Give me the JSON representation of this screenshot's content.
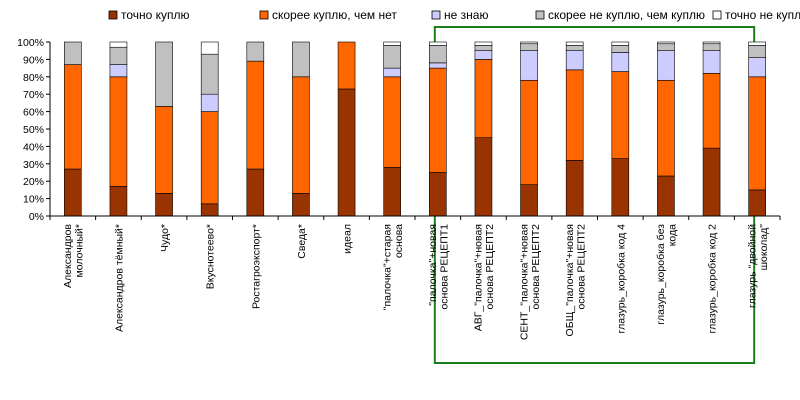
{
  "chart_data": {
    "type": "bar",
    "stacked": "percent",
    "ylim": [
      0,
      100
    ],
    "y_ticks": [
      "0%",
      "10%",
      "20%",
      "30%",
      "40%",
      "50%",
      "60%",
      "70%",
      "80%",
      "90%",
      "100%"
    ],
    "grid": false,
    "legend_position": "top",
    "highlight_box_color": "#1a7f1a",
    "highlight_box_categories": [
      8,
      14
    ],
    "categories": [
      [
        "Александров",
        "молочный*"
      ],
      [
        "Александров тёмный*"
      ],
      [
        "Чудо*"
      ],
      [
        "Вкуснотеево*"
      ],
      [
        "Ростагроэкспорт*"
      ],
      [
        "Сведа*"
      ],
      [
        "идеал"
      ],
      [
        "\"палочка\"+старая",
        "основа"
      ],
      [
        "\"палочка\"+новая",
        "основа РЕЦЕПТ1"
      ],
      [
        "АВГ_\"палочка\"+новая",
        "основа РЕЦЕПТ2"
      ],
      [
        "СЕНТ_\"палочка\"+новая",
        "основа РЕЦЕПТ2"
      ],
      [
        "ОБЩ_\"палочка\"+новая",
        "основа РЕЦЕПТ2"
      ],
      [
        "глазурь_коробка код 4"
      ],
      [
        "глазурь_коробка без",
        "кода"
      ],
      [
        "глазурь_коробка код 2"
      ],
      [
        "глазурь \"двойной",
        "шоколад\""
      ]
    ],
    "series": [
      {
        "name": "точно куплю",
        "color": "#993300",
        "values": [
          27,
          17,
          13,
          7,
          27,
          13,
          73,
          28,
          25,
          45,
          18,
          32,
          33,
          23,
          39,
          15
        ]
      },
      {
        "name": "скорее куплю, чем нет",
        "color": "#ff6600",
        "values": [
          60,
          63,
          50,
          53,
          62,
          67,
          27,
          52,
          60,
          45,
          60,
          52,
          50,
          55,
          43,
          65
        ]
      },
      {
        "name": "не знаю",
        "color": "#ccccff",
        "values": [
          0,
          7,
          0,
          10,
          0,
          0,
          0,
          5,
          3,
          5,
          17,
          11,
          11,
          17,
          13,
          11
        ]
      },
      {
        "name": "скорее не куплю, чем куплю",
        "color": "#c0c0c0",
        "values": [
          13,
          10,
          37,
          23,
          11,
          20,
          0,
          13,
          10,
          3,
          4,
          3,
          4,
          4,
          4,
          7
        ]
      },
      {
        "name": "точно не куплю",
        "color": "#ffffff",
        "values": [
          0,
          3,
          0,
          7,
          0,
          0,
          0,
          2,
          2,
          2,
          1,
          2,
          2,
          1,
          1,
          2
        ]
      }
    ]
  }
}
